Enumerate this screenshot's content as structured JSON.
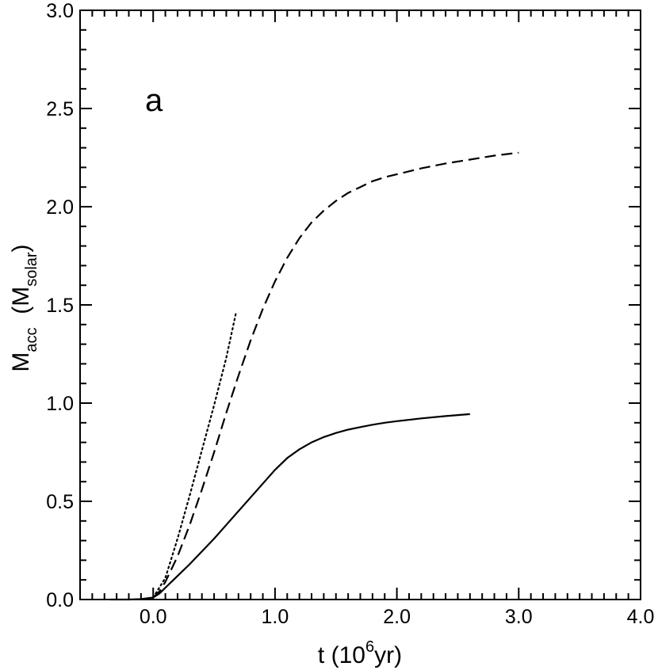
{
  "chart_data": {
    "type": "line",
    "panel_label": "a",
    "xlabel": {
      "pre": "t (10",
      "sup": "6",
      "post": "yr)"
    },
    "ylabel": {
      "main": "M",
      "sub": "acc",
      "mid": "  (M",
      "sub2": "solar",
      "end": ")"
    },
    "xlim": [
      -0.6,
      4.0
    ],
    "ylim": [
      0.0,
      3.0
    ],
    "x_ticks": [
      0.0,
      1.0,
      2.0,
      3.0,
      4.0
    ],
    "x_tick_labels": [
      "0.0",
      "1.0",
      "2.0",
      "3.0",
      "4.0"
    ],
    "y_ticks": [
      0.0,
      0.5,
      1.0,
      1.5,
      2.0,
      2.5,
      3.0
    ],
    "y_tick_labels": [
      "0.0",
      "0.5",
      "1.0",
      "1.5",
      "2.0",
      "2.5",
      "3.0"
    ],
    "x_minor_step": 0.1,
    "y_minor_step": 0.1,
    "grid": false,
    "series": [
      {
        "style": "solid",
        "x": [
          -0.35,
          -0.2,
          -0.1,
          0.0,
          0.05,
          0.1,
          0.2,
          0.3,
          0.4,
          0.5,
          0.6,
          0.7,
          0.8,
          0.9,
          1.0,
          1.1,
          1.2,
          1.3,
          1.4,
          1.5,
          1.6,
          1.7,
          1.8,
          1.9,
          2.0,
          2.2,
          2.4,
          2.6
        ],
        "y": [
          0.0,
          0.0,
          0.002,
          0.01,
          0.03,
          0.06,
          0.12,
          0.18,
          0.245,
          0.31,
          0.38,
          0.45,
          0.52,
          0.59,
          0.66,
          0.72,
          0.765,
          0.8,
          0.827,
          0.848,
          0.865,
          0.878,
          0.89,
          0.9,
          0.908,
          0.922,
          0.934,
          0.944
        ]
      },
      {
        "style": "dashed",
        "x": [
          0.0,
          0.05,
          0.1,
          0.2,
          0.3,
          0.4,
          0.5,
          0.6,
          0.7,
          0.8,
          0.9,
          1.0,
          1.1,
          1.2,
          1.3,
          1.4,
          1.5,
          1.6,
          1.7,
          1.8,
          1.9,
          2.0,
          2.2,
          2.4,
          2.6,
          2.8,
          3.0
        ],
        "y": [
          0.01,
          0.04,
          0.09,
          0.22,
          0.38,
          0.56,
          0.75,
          0.95,
          1.14,
          1.32,
          1.48,
          1.62,
          1.74,
          1.84,
          1.92,
          1.98,
          2.03,
          2.07,
          2.1,
          2.13,
          2.15,
          2.165,
          2.195,
          2.22,
          2.24,
          2.26,
          2.275
        ]
      },
      {
        "style": "dotted",
        "x": [
          0.0,
          0.1,
          0.2,
          0.3,
          0.4,
          0.5,
          0.6,
          0.68
        ],
        "y": [
          0.01,
          0.11,
          0.31,
          0.53,
          0.76,
          0.99,
          1.23,
          1.46
        ]
      }
    ]
  }
}
